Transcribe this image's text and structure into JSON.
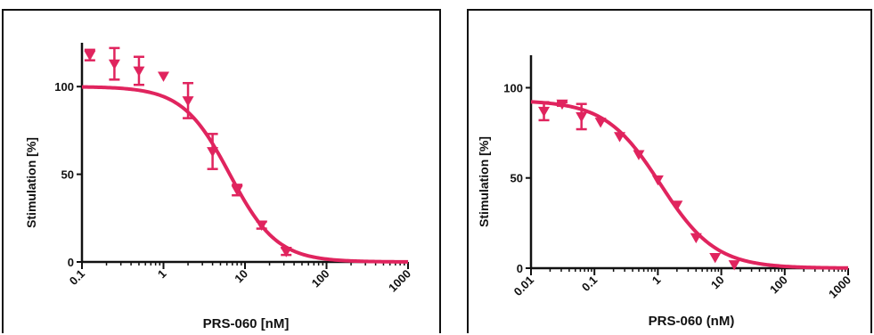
{
  "colors": {
    "curve": "#e0245e",
    "axis": "#111111",
    "background": "#ffffff"
  },
  "chart_data": [
    {
      "type": "scatter",
      "title": "",
      "xlabel": "PRS-060 [nM]",
      "ylabel": "Stimulation [%]",
      "x_scale": "log",
      "xlim": [
        0.1,
        1000
      ],
      "ylim": [
        0,
        125
      ],
      "x_ticks": [
        "0.1",
        "1",
        "10",
        "100",
        "1000"
      ],
      "y_ticks": [
        "0",
        "50",
        "100"
      ],
      "grid": false,
      "marker": "inverted-triangle",
      "series": [
        {
          "points": [
            {
              "x": 0.125,
              "y": 118,
              "err": 3
            },
            {
              "x": 0.25,
              "y": 113,
              "err": 9
            },
            {
              "x": 0.5,
              "y": 109,
              "err": 8
            },
            {
              "x": 1,
              "y": 106,
              "err": 0
            },
            {
              "x": 2,
              "y": 92,
              "err": 10
            },
            {
              "x": 4,
              "y": 63,
              "err": 10
            },
            {
              "x": 8,
              "y": 41,
              "err": 3
            },
            {
              "x": 16,
              "y": 21,
              "err": 2
            },
            {
              "x": 32,
              "y": 6,
              "err": 2
            }
          ],
          "fit": {
            "top": 100,
            "bottom": 0,
            "ec50": 6.5,
            "hill": 1.5
          }
        }
      ]
    },
    {
      "type": "scatter",
      "title": "",
      "xlabel": "PRS-060 (nM)",
      "ylabel": "Stimulation [%]",
      "x_scale": "log",
      "xlim": [
        0.01,
        1000
      ],
      "ylim": [
        0,
        118
      ],
      "x_ticks": [
        "0.01",
        "0.1",
        "1",
        "10",
        "100",
        "1000"
      ],
      "y_ticks": [
        "0",
        "50",
        "100"
      ],
      "grid": false,
      "marker": "inverted-triangle",
      "series": [
        {
          "points": [
            {
              "x": 0.016,
              "y": 87,
              "err": 5
            },
            {
              "x": 0.031,
              "y": 91,
              "err": 1
            },
            {
              "x": 0.0625,
              "y": 84,
              "err": 7
            },
            {
              "x": 0.125,
              "y": 81,
              "err": 0
            },
            {
              "x": 0.25,
              "y": 73,
              "err": 0
            },
            {
              "x": 0.5,
              "y": 63,
              "err": 0
            },
            {
              "x": 1,
              "y": 49,
              "err": 0
            },
            {
              "x": 2,
              "y": 35,
              "err": 0
            },
            {
              "x": 4,
              "y": 17,
              "err": 0
            },
            {
              "x": 8,
              "y": 6,
              "err": 0
            },
            {
              "x": 16,
              "y": 2,
              "err": 0
            }
          ],
          "fit": {
            "top": 93,
            "bottom": 0,
            "ec50": 1.1,
            "hill": 1.0
          }
        }
      ]
    }
  ]
}
